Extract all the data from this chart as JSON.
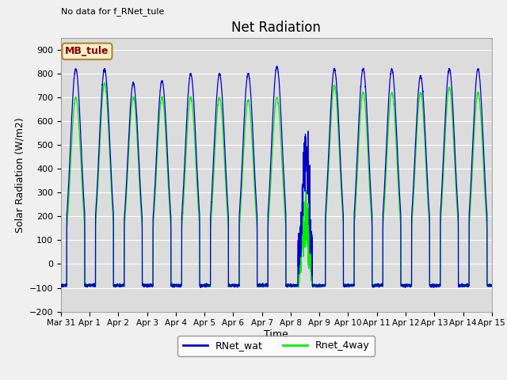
{
  "title": "Net Radiation",
  "ylabel": "Solar Radiation (W/m2)",
  "xlabel": "Time",
  "top_left_text": "No data for f_RNet_tule",
  "legend_label_box": "MB_tule",
  "ylim": [
    -200,
    950
  ],
  "yticks": [
    -200,
    -100,
    0,
    100,
    200,
    300,
    400,
    500,
    600,
    700,
    800,
    900
  ],
  "series": [
    {
      "label": "RNet_wat",
      "color": "#0000cc"
    },
    {
      "label": "Rnet_4way",
      "color": "#00ee00"
    }
  ],
  "fig_bg_color": "#f0f0f0",
  "plot_bg_color": "#dcdcdc",
  "n_days": 15,
  "xlim_end": 15
}
